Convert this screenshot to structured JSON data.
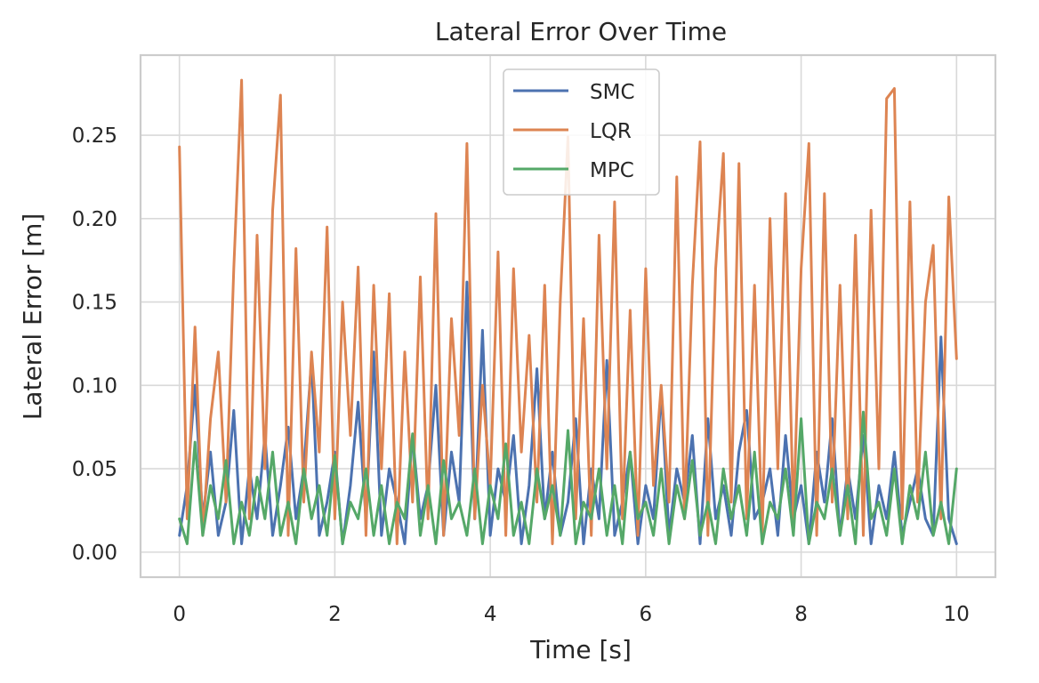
{
  "chart_data": {
    "type": "line",
    "title": "Lateral Error Over Time",
    "xlabel": "Time [s]",
    "ylabel": "Lateral Error [m]",
    "xlim": [
      -0.5,
      10.5
    ],
    "ylim": [
      -0.015,
      0.298
    ],
    "xticks": [
      0,
      2,
      4,
      6,
      8,
      10
    ],
    "xtick_labels": [
      "0",
      "2",
      "4",
      "6",
      "8",
      "10"
    ],
    "yticks": [
      0.0,
      0.05,
      0.1,
      0.15,
      0.2,
      0.25
    ],
    "ytick_labels": [
      "0.00",
      "0.05",
      "0.10",
      "0.15",
      "0.20",
      "0.25"
    ],
    "grid": true,
    "legend_position": "top-center",
    "x": [
      0,
      0.1,
      0.2,
      0.3,
      0.4,
      0.5,
      0.6,
      0.7,
      0.8,
      0.9,
      1.0,
      1.1,
      1.2,
      1.3,
      1.4,
      1.5,
      1.6,
      1.7,
      1.8,
      1.9,
      2.0,
      2.1,
      2.2,
      2.3,
      2.4,
      2.5,
      2.6,
      2.7,
      2.8,
      2.9,
      3.0,
      3.1,
      3.2,
      3.3,
      3.4,
      3.5,
      3.6,
      3.7,
      3.8,
      3.9,
      4.0,
      4.1,
      4.2,
      4.3,
      4.4,
      4.5,
      4.6,
      4.7,
      4.8,
      4.9,
      5.0,
      5.1,
      5.2,
      5.3,
      5.4,
      5.5,
      5.6,
      5.7,
      5.8,
      5.9,
      6.0,
      6.1,
      6.2,
      6.3,
      6.4,
      6.5,
      6.6,
      6.7,
      6.8,
      6.9,
      7.0,
      7.1,
      7.2,
      7.3,
      7.4,
      7.5,
      7.6,
      7.7,
      7.8,
      7.9,
      8.0,
      8.1,
      8.2,
      8.3,
      8.4,
      8.5,
      8.6,
      8.7,
      8.8,
      8.9,
      9.0,
      9.1,
      9.2,
      9.3,
      9.4,
      9.5,
      9.6,
      9.7,
      9.8,
      9.9,
      10.0
    ],
    "series": [
      {
        "name": "SMC",
        "color": "#4c72b0",
        "values": [
          0.01,
          0.04,
          0.1,
          0.02,
          0.06,
          0.01,
          0.03,
          0.085,
          0.005,
          0.05,
          0.02,
          0.07,
          0.01,
          0.04,
          0.075,
          0.02,
          0.05,
          0.115,
          0.01,
          0.03,
          0.06,
          0.005,
          0.04,
          0.09,
          0.02,
          0.12,
          0.01,
          0.05,
          0.03,
          0.005,
          0.07,
          0.02,
          0.04,
          0.1,
          0.01,
          0.06,
          0.03,
          0.162,
          0.02,
          0.133,
          0.01,
          0.05,
          0.03,
          0.07,
          0.005,
          0.04,
          0.11,
          0.02,
          0.06,
          0.01,
          0.03,
          0.08,
          0.005,
          0.05,
          0.02,
          0.115,
          0.01,
          0.03,
          0.06,
          0.005,
          0.04,
          0.02,
          0.097,
          0.01,
          0.05,
          0.03,
          0.07,
          0.005,
          0.08,
          0.02,
          0.04,
          0.01,
          0.06,
          0.085,
          0.02,
          0.03,
          0.05,
          0.01,
          0.07,
          0.02,
          0.04,
          0.005,
          0.06,
          0.03,
          0.08,
          0.01,
          0.05,
          0.02,
          0.07,
          0.005,
          0.04,
          0.02,
          0.06,
          0.01,
          0.03,
          0.05,
          0.02,
          0.01,
          0.129,
          0.02,
          0.005
        ]
      },
      {
        "name": "LQR",
        "color": "#dd8452",
        "values": [
          0.243,
          0.02,
          0.135,
          0.01,
          0.08,
          0.12,
          0.03,
          0.17,
          0.283,
          0.02,
          0.19,
          0.05,
          0.205,
          0.274,
          0.01,
          0.182,
          0.03,
          0.12,
          0.06,
          0.195,
          0.02,
          0.15,
          0.07,
          0.171,
          0.01,
          0.16,
          0.05,
          0.155,
          0.005,
          0.12,
          0.03,
          0.165,
          0.02,
          0.203,
          0.01,
          0.14,
          0.07,
          0.245,
          0.02,
          0.1,
          0.04,
          0.18,
          0.01,
          0.17,
          0.06,
          0.13,
          0.03,
          0.16,
          0.005,
          0.15,
          0.249,
          0.02,
          0.14,
          0.01,
          0.19,
          0.05,
          0.21,
          0.02,
          0.145,
          0.01,
          0.17,
          0.04,
          0.1,
          0.03,
          0.225,
          0.02,
          0.16,
          0.246,
          0.01,
          0.17,
          0.239,
          0.03,
          0.233,
          0.02,
          0.16,
          0.01,
          0.2,
          0.05,
          0.215,
          0.02,
          0.17,
          0.245,
          0.01,
          0.215,
          0.03,
          0.16,
          0.02,
          0.19,
          0.01,
          0.205,
          0.05,
          0.272,
          0.278,
          0.02,
          0.21,
          0.03,
          0.15,
          0.184,
          0.02,
          0.213,
          0.116
        ]
      },
      {
        "name": "MPC",
        "color": "#55a868",
        "values": [
          0.02,
          0.005,
          0.066,
          0.01,
          0.04,
          0.02,
          0.055,
          0.005,
          0.03,
          0.01,
          0.045,
          0.02,
          0.06,
          0.01,
          0.03,
          0.005,
          0.05,
          0.02,
          0.04,
          0.01,
          0.058,
          0.005,
          0.03,
          0.02,
          0.05,
          0.01,
          0.04,
          0.005,
          0.03,
          0.02,
          0.071,
          0.01,
          0.04,
          0.005,
          0.055,
          0.02,
          0.03,
          0.01,
          0.05,
          0.005,
          0.04,
          0.02,
          0.065,
          0.01,
          0.03,
          0.005,
          0.05,
          0.02,
          0.04,
          0.01,
          0.073,
          0.005,
          0.03,
          0.02,
          0.05,
          0.01,
          0.04,
          0.005,
          0.06,
          0.02,
          0.03,
          0.01,
          0.05,
          0.005,
          0.04,
          0.02,
          0.055,
          0.01,
          0.03,
          0.005,
          0.05,
          0.02,
          0.04,
          0.01,
          0.06,
          0.005,
          0.03,
          0.02,
          0.05,
          0.01,
          0.08,
          0.005,
          0.03,
          0.02,
          0.05,
          0.01,
          0.04,
          0.005,
          0.084,
          0.02,
          0.03,
          0.01,
          0.05,
          0.005,
          0.04,
          0.02,
          0.06,
          0.01,
          0.03,
          0.005,
          0.05
        ]
      }
    ]
  }
}
